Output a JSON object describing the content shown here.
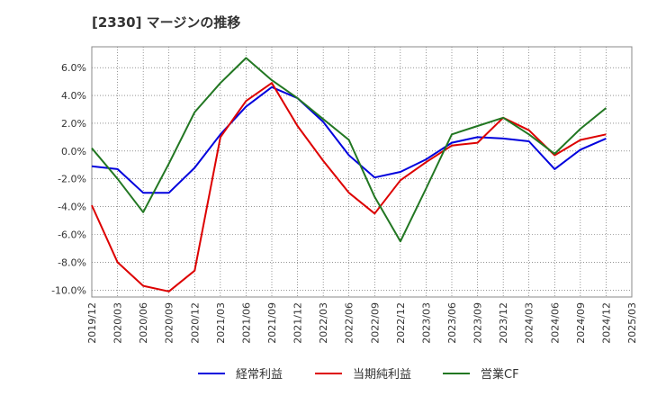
{
  "chart_data": {
    "type": "line",
    "title": "[2330]  マージンの推移",
    "x": [
      "2019/12",
      "2020/03",
      "2020/06",
      "2020/09",
      "2020/12",
      "2021/03",
      "2021/06",
      "2021/09",
      "2021/12",
      "2022/03",
      "2022/06",
      "2022/09",
      "2022/12",
      "2023/03",
      "2023/06",
      "2023/09",
      "2023/12",
      "2024/03",
      "2024/06",
      "2024/09",
      "2024/12",
      "2025/03"
    ],
    "ylim": [
      -10.5,
      7.5
    ],
    "yticks": [
      6,
      4,
      2,
      0,
      -2,
      -4,
      -6,
      -8,
      -10
    ],
    "ytick_labels": [
      "6.0%",
      "4.0%",
      "2.0%",
      "0.0%",
      "-2.0%",
      "-4.0%",
      "-6.0%",
      "-8.0%",
      "-10.0%"
    ],
    "grid": true,
    "legend_position": "bottom",
    "series": [
      {
        "name": "経常利益",
        "color": "#0000dd",
        "values": [
          -1.1,
          -1.3,
          -3.0,
          -3.0,
          -1.2,
          1.2,
          3.2,
          4.6,
          3.8,
          2.1,
          -0.3,
          -1.9,
          -1.5,
          -0.6,
          0.6,
          1.0,
          0.9,
          0.7,
          -1.3,
          0.1,
          0.9,
          null
        ]
      },
      {
        "name": "当期純利益",
        "color": "#dd0000",
        "values": [
          -3.9,
          -8.0,
          -9.7,
          -10.1,
          -8.6,
          1.0,
          3.6,
          4.9,
          1.8,
          -0.7,
          -3.0,
          -4.5,
          -2.1,
          -0.8,
          0.4,
          0.6,
          2.4,
          1.5,
          -0.3,
          0.8,
          1.2,
          null
        ]
      },
      {
        "name": "営業CF",
        "color": "#227722",
        "values": [
          0.2,
          -2.0,
          -4.4,
          -0.9,
          2.8,
          4.9,
          6.7,
          5.1,
          3.8,
          2.3,
          0.8,
          -3.3,
          -6.5,
          -2.7,
          1.2,
          1.8,
          2.4,
          1.2,
          -0.2,
          1.6,
          3.1,
          null
        ]
      }
    ]
  }
}
